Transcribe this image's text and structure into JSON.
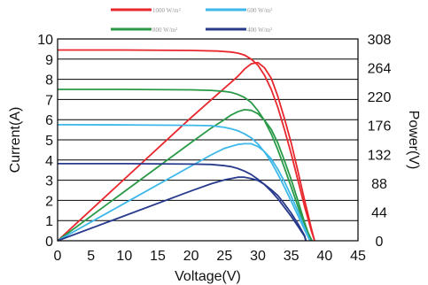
{
  "chart_data": {
    "type": "line",
    "x_axis": {
      "label": "Voltage(V)",
      "range": [
        0,
        45
      ],
      "ticks": [
        "0",
        "5",
        "10",
        "15",
        "20",
        "25",
        "30",
        "35",
        "40",
        "45"
      ]
    },
    "y_axis_left": {
      "label": "Current(A)",
      "range": [
        0,
        10
      ],
      "ticks": [
        "0",
        "1",
        "2",
        "3",
        "4",
        "5",
        "6",
        "7",
        "8",
        "9",
        "10"
      ]
    },
    "y_axis_right": {
      "label": "Power(V)",
      "range": [
        0,
        308
      ],
      "ticks": [
        "0",
        "44",
        "88",
        "132",
        "176",
        "220",
        "264",
        "308"
      ]
    },
    "grid": {
      "horizontal": true,
      "vertical": false
    },
    "legend": {
      "placement": "top",
      "entries": [
        {
          "label": "1000 W/m²",
          "color": "#e8272d"
        },
        {
          "label": "600 W/m²",
          "color": "#3db8e8"
        },
        {
          "label": "800 W/m²",
          "color": "#2a9a48"
        },
        {
          "label": "400 W/m²",
          "color": "#283a8c"
        }
      ]
    },
    "series": [
      {
        "name": "1000 W/m²",
        "color": "#e8272d",
        "current": {
          "x": [
            0,
            10,
            20,
            24,
            26,
            27,
            28,
            29,
            30,
            31,
            32,
            33,
            34,
            35,
            36,
            37,
            37.5,
            38,
            38.5
          ],
          "y": [
            9.45,
            9.45,
            9.43,
            9.4,
            9.35,
            9.3,
            9.2,
            9.0,
            8.7,
            8.2,
            7.5,
            6.6,
            5.5,
            4.3,
            3.0,
            1.7,
            1.1,
            0.5,
            0
          ]
        },
        "power": {
          "x": [
            0,
            10,
            20,
            24,
            26,
            27,
            28,
            29,
            30,
            31,
            32,
            33,
            34,
            35,
            36,
            37,
            37.5,
            38,
            38.5
          ],
          "y": [
            0,
            94,
            188,
            224,
            242,
            251,
            262,
            270,
            272,
            264,
            248,
            220,
            186,
            149,
            106,
            62,
            41,
            19,
            0
          ]
        }
      },
      {
        "name": "800 W/m²",
        "color": "#2a9a48",
        "current": {
          "x": [
            0,
            10,
            20,
            23,
            25,
            26,
            27,
            28,
            29,
            30,
            31,
            32,
            33,
            34,
            35,
            36,
            37,
            37.5,
            38.1
          ],
          "y": [
            7.5,
            7.5,
            7.48,
            7.45,
            7.4,
            7.35,
            7.25,
            7.1,
            6.85,
            6.45,
            5.95,
            5.3,
            4.5,
            3.6,
            2.65,
            1.7,
            0.75,
            0.35,
            0
          ]
        },
        "power": {
          "x": [
            0,
            10,
            20,
            23,
            25,
            26,
            27,
            28,
            29,
            30,
            31,
            32,
            33,
            34,
            35,
            36,
            37,
            37.5,
            38.1
          ],
          "y": [
            0,
            75,
            150,
            172,
            185,
            192,
            197,
            200,
            199,
            194,
            184,
            170,
            149,
            122,
            93,
            61,
            28,
            13,
            0
          ]
        }
      },
      {
        "name": "600 W/m²",
        "color": "#3db8e8",
        "current": {
          "x": [
            0,
            10,
            20,
            23,
            25,
            26,
            27,
            28,
            29,
            30,
            31,
            32,
            33,
            34,
            35,
            36,
            37,
            37.8
          ],
          "y": [
            5.75,
            5.74,
            5.72,
            5.7,
            5.62,
            5.55,
            5.45,
            5.3,
            5.1,
            4.8,
            4.4,
            3.9,
            3.3,
            2.65,
            1.95,
            1.25,
            0.55,
            0
          ]
        },
        "power": {
          "x": [
            0,
            10,
            20,
            23,
            25,
            26,
            27,
            28,
            29,
            30,
            31,
            32,
            33,
            34,
            35,
            36,
            37,
            37.8
          ],
          "y": [
            0,
            57,
            114,
            131,
            141,
            144,
            147,
            148,
            148,
            144,
            136,
            125,
            109,
            90,
            68,
            45,
            20,
            0
          ]
        }
      },
      {
        "name": "400 W/m²",
        "color": "#283a8c",
        "current": {
          "x": [
            0,
            10,
            20,
            23,
            25,
            26,
            27,
            28,
            29,
            30,
            31,
            32,
            33,
            34,
            35,
            36,
            37,
            37.2
          ],
          "y": [
            3.82,
            3.82,
            3.8,
            3.78,
            3.72,
            3.67,
            3.58,
            3.45,
            3.28,
            3.05,
            2.78,
            2.45,
            2.08,
            1.65,
            1.2,
            0.72,
            0.22,
            0
          ]
        },
        "power": {
          "x": [
            0,
            10,
            20,
            23,
            25,
            26,
            27,
            28,
            29,
            30,
            31,
            32,
            33,
            34,
            35,
            36,
            37,
            37.2
          ],
          "y": [
            0,
            38,
            76,
            87,
            93,
            95,
            97,
            97,
            95,
            92,
            86,
            78,
            69,
            56,
            42,
            26,
            8,
            0
          ]
        }
      }
    ]
  }
}
